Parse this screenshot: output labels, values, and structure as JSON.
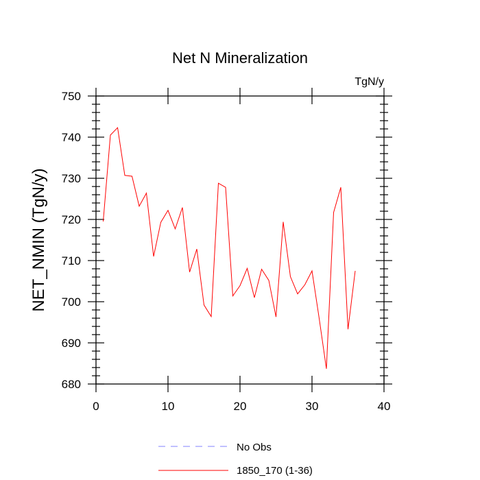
{
  "chart_data": {
    "type": "line",
    "title": "Net N Mineralization",
    "units_label": "TgN/y",
    "ylabel": "NET_NMIN  (TgN/y)",
    "xlabel": "",
    "xlim": [
      0,
      40
    ],
    "ylim": [
      680,
      750
    ],
    "xticks": [
      0,
      10,
      20,
      30,
      40
    ],
    "xtick_labels": [
      "0",
      "10",
      "20",
      "30",
      "40"
    ],
    "yticks": [
      680,
      690,
      700,
      710,
      720,
      730,
      740,
      750
    ],
    "ytick_labels": [
      "680",
      "690",
      "700",
      "710",
      "720",
      "730",
      "740",
      "750"
    ],
    "grid": false,
    "legend_position": "bottom-center",
    "series": [
      {
        "name": "1850_170 (1-36)",
        "color": "#ff0000",
        "style": "solid",
        "x": [
          1,
          2,
          3,
          4,
          5,
          6,
          7,
          8,
          9,
          10,
          11,
          12,
          13,
          14,
          15,
          16,
          17,
          18,
          19,
          20,
          21,
          22,
          23,
          24,
          25,
          26,
          27,
          28,
          29,
          30,
          31,
          32,
          33,
          34,
          35,
          36
        ],
        "values": [
          719.5,
          740.5,
          742.3,
          730.7,
          730.5,
          723.2,
          726.4,
          711.0,
          719.3,
          722.2,
          717.7,
          722.9,
          707.2,
          712.8,
          699.2,
          696.4,
          728.8,
          727.8,
          701.4,
          703.9,
          708.1,
          701.0,
          707.9,
          705.2,
          696.3,
          719.4,
          706.1,
          701.9,
          704.1,
          707.5,
          695.9,
          683.7,
          721.7,
          727.8,
          693.3,
          707.5
        ]
      },
      {
        "name": "No Obs",
        "color": "#8080ff",
        "style": "dashed",
        "x": [],
        "values": []
      }
    ]
  }
}
